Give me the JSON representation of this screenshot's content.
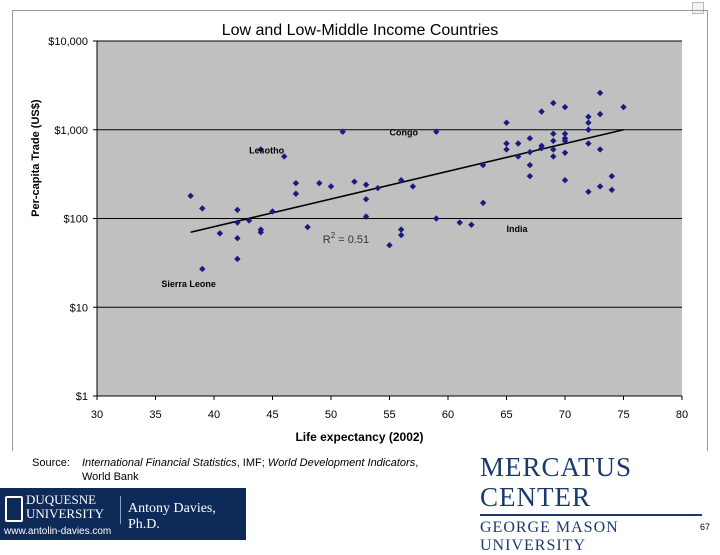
{
  "slide": {
    "source_label": "Source:",
    "source_italic_1": "International Financial Statistics",
    "source_mid": ", IMF; ",
    "source_italic_2": "World Development Indicators",
    "source_end": ",",
    "source_line2": "World Bank",
    "org_top": "MERCATUS CENTER",
    "org_bottom": "GEORGE MASON UNIVERSITY",
    "univ_line1": "DUQUESNE",
    "univ_line2": "UNIVERSITY",
    "author": "Antony Davies, Ph.D.",
    "website": "www.antolin-davies.com",
    "page_number": "67"
  },
  "chart_data": {
    "type": "scatter",
    "title": "Low and Low-Middle Income Countries",
    "xlabel": "Life expectancy (2002)",
    "ylabel": "Per-capita Trade (US$)",
    "xlim": [
      30,
      80
    ],
    "ylim": [
      1,
      10000
    ],
    "y_scale": "log",
    "x_ticks": [
      "30",
      "35",
      "40",
      "45",
      "50",
      "55",
      "60",
      "65",
      "70",
      "75",
      "80"
    ],
    "y_ticks": [
      {
        "value": 10000,
        "label": "$10,000"
      },
      {
        "value": 1000,
        "label": "$1,000"
      },
      {
        "value": 100,
        "label": "$100"
      },
      {
        "value": 10,
        "label": "$10"
      },
      {
        "value": 1,
        "label": "$1"
      }
    ],
    "gridlines": "horizontal",
    "plot_background": "#c0c0c0",
    "marker_color": "#1a1a80",
    "trendline": {
      "x": [
        38,
        75
      ],
      "y": [
        70,
        1000
      ],
      "color": "#000000"
    },
    "r2_label": "R",
    "r2_exp": "2",
    "r2_value": " = 0.51",
    "annotations": [
      {
        "text": "Congo",
        "x": 55,
        "y": 860
      },
      {
        "text": "Lesotho",
        "x": 43,
        "y": 540
      },
      {
        "text": "India",
        "x": 65,
        "y": 70
      },
      {
        "text": "Sierra Leone",
        "x": 35.5,
        "y": 17
      }
    ],
    "points": [
      [
        38,
        180
      ],
      [
        39,
        130
      ],
      [
        39,
        27
      ],
      [
        40.5,
        68
      ],
      [
        42,
        90
      ],
      [
        42,
        125
      ],
      [
        42,
        35
      ],
      [
        42,
        60
      ],
      [
        43,
        95
      ],
      [
        44,
        600
      ],
      [
        44,
        75
      ],
      [
        44,
        70
      ],
      [
        45,
        120
      ],
      [
        46,
        500
      ],
      [
        47,
        250
      ],
      [
        47,
        190
      ],
      [
        48,
        80
      ],
      [
        49,
        250
      ],
      [
        50,
        230
      ],
      [
        51,
        950
      ],
      [
        52,
        260
      ],
      [
        53,
        240
      ],
      [
        53,
        165
      ],
      [
        53,
        105
      ],
      [
        54,
        220
      ],
      [
        55,
        50
      ],
      [
        56,
        270
      ],
      [
        56,
        75
      ],
      [
        56,
        65
      ],
      [
        57,
        230
      ],
      [
        59,
        950
      ],
      [
        59,
        100
      ],
      [
        61,
        90
      ],
      [
        62,
        85
      ],
      [
        63,
        400
      ],
      [
        63,
        150
      ],
      [
        65,
        1200
      ],
      [
        65,
        700
      ],
      [
        65,
        600
      ],
      [
        66,
        700
      ],
      [
        66,
        500
      ],
      [
        67,
        800
      ],
      [
        67,
        400
      ],
      [
        67,
        300
      ],
      [
        67,
        560
      ],
      [
        68,
        1600
      ],
      [
        68,
        660
      ],
      [
        68,
        620
      ],
      [
        69,
        2000
      ],
      [
        69,
        900
      ],
      [
        69,
        750
      ],
      [
        69,
        600
      ],
      [
        69,
        500
      ],
      [
        70,
        1800
      ],
      [
        70,
        900
      ],
      [
        70,
        800
      ],
      [
        70,
        750
      ],
      [
        70,
        550
      ],
      [
        70,
        270
      ],
      [
        72,
        1400
      ],
      [
        72,
        1200
      ],
      [
        72,
        1000
      ],
      [
        72,
        700
      ],
      [
        72,
        200
      ],
      [
        73,
        2600
      ],
      [
        73,
        1500
      ],
      [
        73,
        600
      ],
      [
        73,
        230
      ],
      [
        74,
        300
      ],
      [
        74,
        210
      ],
      [
        75,
        1800
      ]
    ]
  }
}
